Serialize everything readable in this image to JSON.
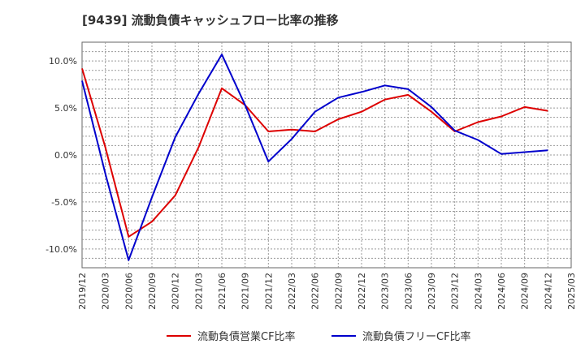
{
  "chart_data": {
    "type": "line",
    "title": "[9439]  流動負債キャッシュフロー比率の推移",
    "xlabel": "",
    "ylabel": "",
    "x_ticks": [
      "2019/12",
      "2020/03",
      "2020/06",
      "2020/09",
      "2020/12",
      "2021/03",
      "2021/06",
      "2021/09",
      "2021/12",
      "2022/03",
      "2022/06",
      "2022/09",
      "2022/12",
      "2023/03",
      "2023/06",
      "2023/09",
      "2023/12",
      "2024/03",
      "2024/06",
      "2024/09",
      "2024/12",
      "2025/03"
    ],
    "y_ticks": [
      10,
      5,
      0,
      -5,
      -10
    ],
    "y_tick_labels": [
      "10.0%",
      "5.0%",
      "0.0%",
      "-5.0%",
      "-10.0%"
    ],
    "ylim": [
      -12,
      12
    ],
    "grid": true,
    "legend_position": "bottom",
    "x": [
      "2019/12",
      "2020/03",
      "2020/06",
      "2020/09",
      "2020/12",
      "2021/03",
      "2021/06",
      "2021/09",
      "2021/12",
      "2022/03",
      "2022/06",
      "2022/09",
      "2022/12",
      "2023/03",
      "2023/06",
      "2023/09",
      "2023/12",
      "2024/03",
      "2024/06",
      "2024/09",
      "2024/12"
    ],
    "series": [
      {
        "name": "流動負債営業CF比率",
        "color": "#dd0000",
        "values": [
          9.2,
          0.8,
          -8.7,
          -7.1,
          -4.3,
          0.8,
          7.1,
          5.3,
          2.5,
          2.7,
          2.5,
          3.8,
          4.6,
          5.9,
          6.4,
          4.6,
          2.5,
          3.5,
          4.1,
          5.1,
          4.7
        ]
      },
      {
        "name": "流動負債フリーCF比率",
        "color": "#0000cc",
        "values": [
          7.9,
          -2.0,
          -11.2,
          -4.5,
          1.9,
          6.5,
          10.7,
          5.3,
          -0.7,
          1.7,
          4.6,
          6.1,
          6.7,
          7.4,
          7.0,
          5.1,
          2.6,
          1.6,
          0.1,
          0.3,
          0.5
        ]
      }
    ]
  }
}
